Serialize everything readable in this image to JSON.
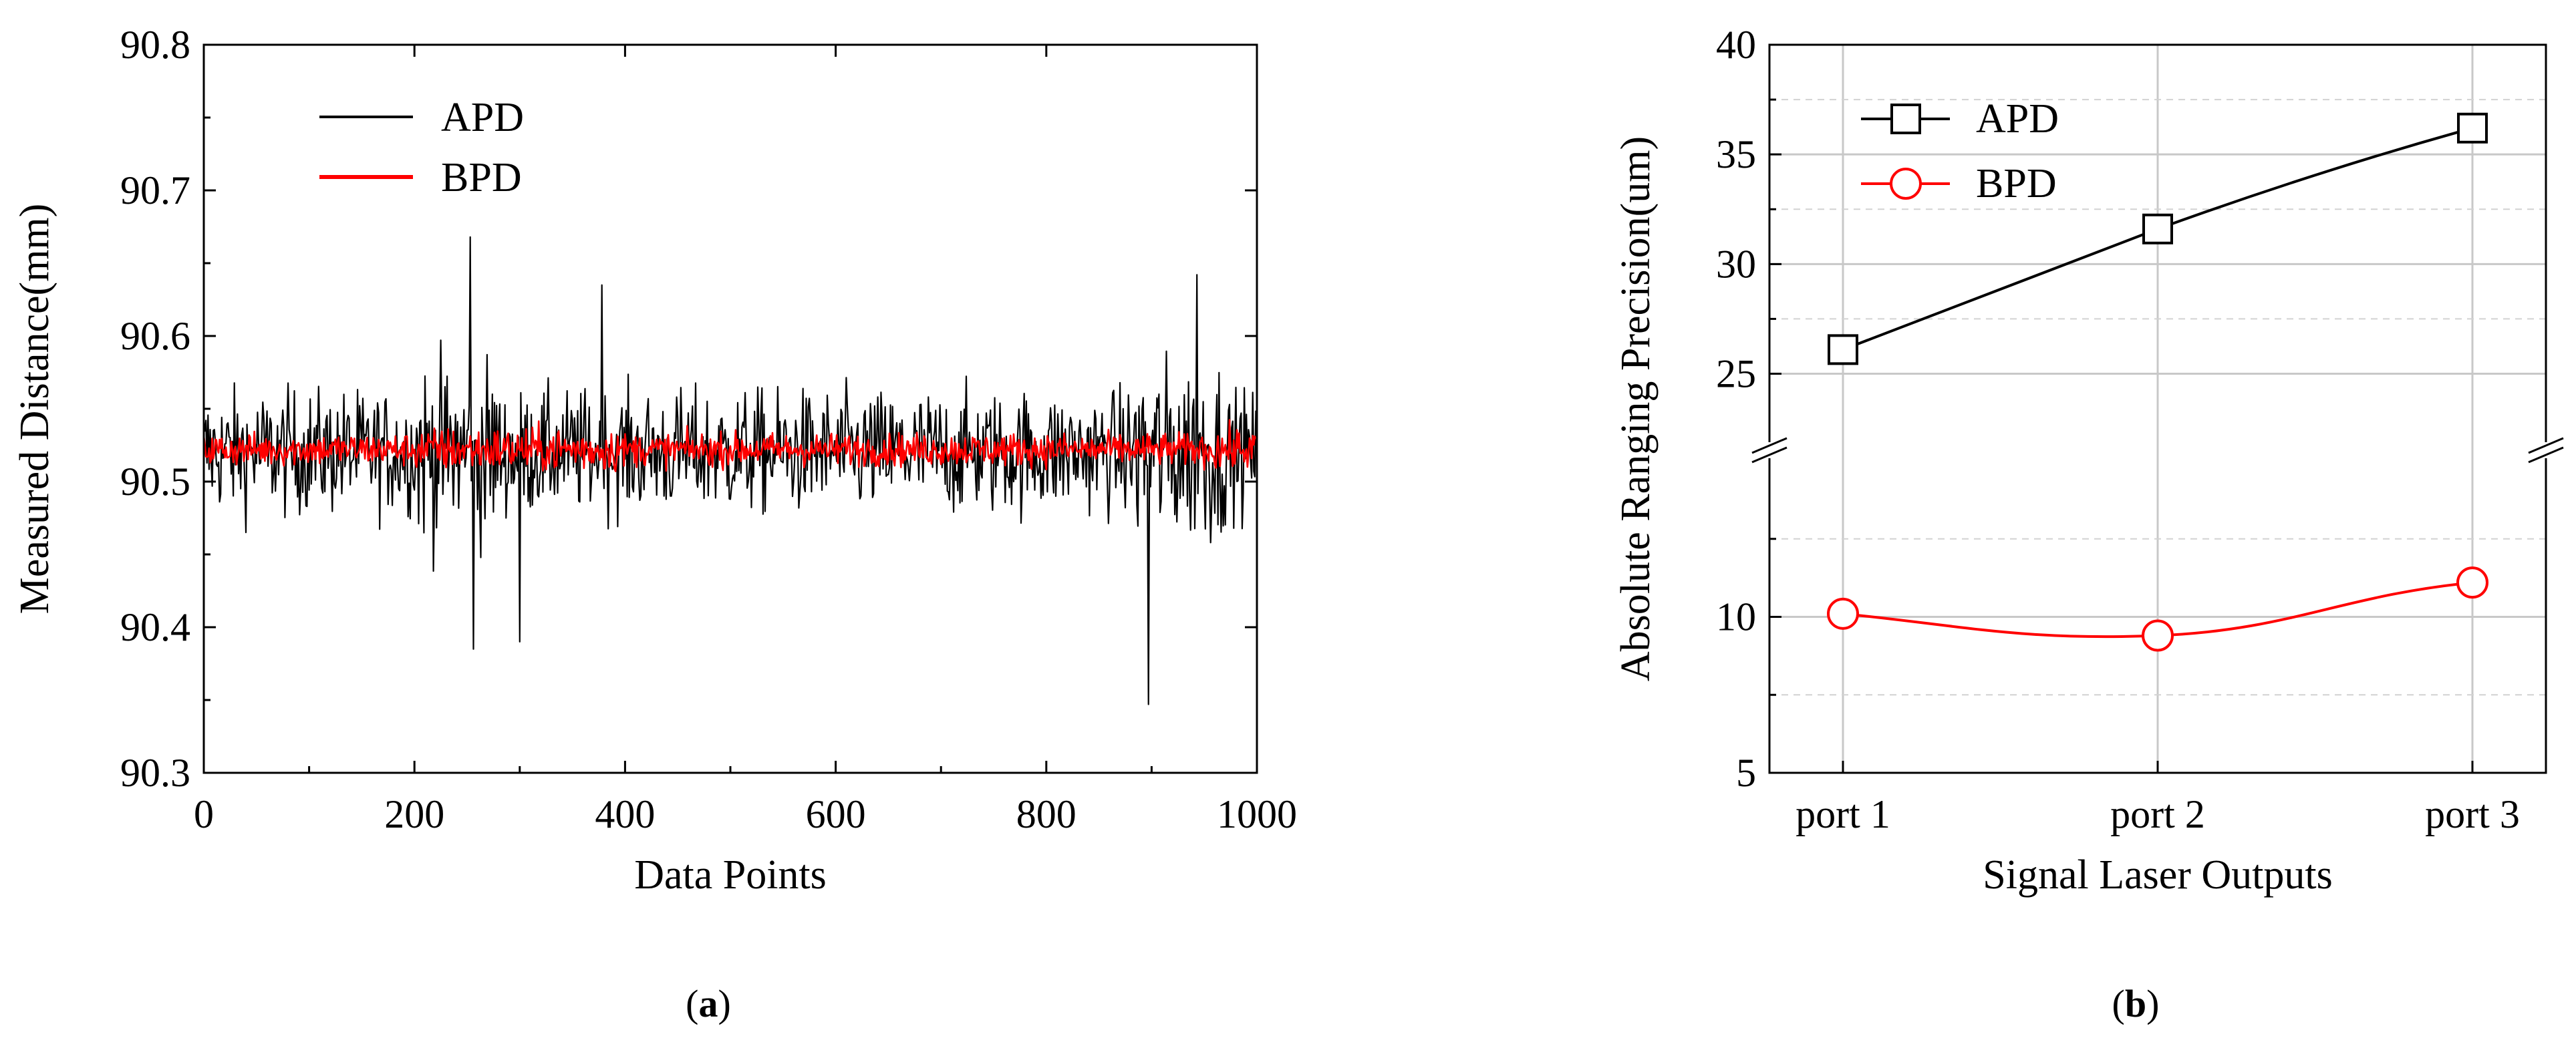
{
  "chart_data": [
    {
      "type": "line",
      "xlabel": "Data Points",
      "ylabel": "Measured Distance(mm)",
      "xlim": [
        0,
        1000
      ],
      "ylim": [
        90.3,
        90.8
      ],
      "x_ticks": [
        "0",
        "200",
        "400",
        "600",
        "800",
        "1000"
      ],
      "y_ticks": [
        "90.3",
        "90.4",
        "90.5",
        "90.6",
        "90.7",
        "90.8"
      ],
      "grid": false,
      "legend_position": "top-left",
      "series": [
        {
          "name": "APD",
          "color": "#000000",
          "num_points": 1000,
          "center": 90.52,
          "typical_spread": 0.03,
          "peak_events": [
            {
              "x": 253,
              "y": 90.668
            },
            {
              "x": 256,
              "y": 90.385
            },
            {
              "x": 300,
              "y": 90.39
            },
            {
              "x": 378,
              "y": 90.635
            },
            {
              "x": 897,
              "y": 90.347
            },
            {
              "x": 943,
              "y": 90.642
            }
          ]
        },
        {
          "name": "BPD",
          "color": "#ff0000",
          "num_points": 1000,
          "center": 90.522,
          "typical_spread": 0.008
        }
      ],
      "caption": {
        "open": "(",
        "letter": "a",
        "close": ")"
      }
    },
    {
      "type": "line",
      "xlabel": "Signal Laser Outputs",
      "ylabel": "Absolute Ranging Precision(um)",
      "categories": [
        "port 1",
        "port 2",
        "port 3"
      ],
      "y_ticks": [
        "5",
        "10",
        "25",
        "30",
        "35",
        "40"
      ],
      "y_axis_break": true,
      "ylim_lower": [
        5,
        15
      ],
      "ylim_upper": [
        22,
        40
      ],
      "grid": true,
      "legend_position": "top-left",
      "series": [
        {
          "name": "APD",
          "color": "#000000",
          "marker": "square",
          "values": [
            26.1,
            31.6,
            36.2
          ]
        },
        {
          "name": "BPD",
          "color": "#ff0000",
          "marker": "circle",
          "values": [
            10.1,
            9.4,
            11.1
          ]
        }
      ],
      "caption": {
        "open": "(",
        "letter": "b",
        "close": ")"
      }
    }
  ]
}
